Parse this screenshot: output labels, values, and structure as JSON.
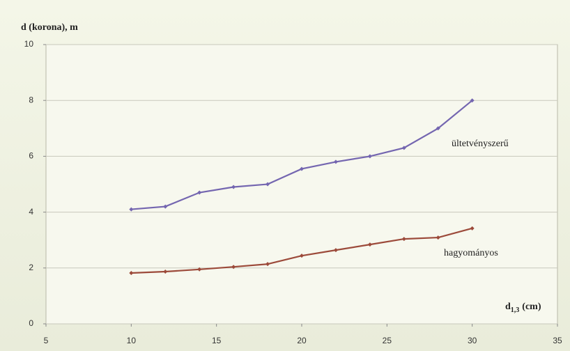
{
  "chart_data": {
    "type": "line",
    "y_label": "d (korona),  m",
    "x_label": {
      "main": "d",
      "sub": "1,3",
      "unit": "(cm)"
    },
    "x": [
      10,
      12,
      14,
      16,
      18,
      20,
      22,
      24,
      26,
      28,
      30
    ],
    "series": [
      {
        "name": "ültetvényszerű",
        "color": "#7466b0",
        "values": [
          4.1,
          4.2,
          4.7,
          4.9,
          5.0,
          5.55,
          5.8,
          6.0,
          6.3,
          7.0,
          8.0
        ]
      },
      {
        "name": "hagyományos",
        "color": "#9c4a3a",
        "values": [
          1.82,
          1.87,
          1.95,
          2.04,
          2.14,
          2.44,
          2.64,
          2.84,
          3.04,
          3.09,
          3.42
        ]
      }
    ],
    "xlim": [
      5,
      35
    ],
    "xticks": [
      5,
      10,
      15,
      20,
      25,
      30,
      35
    ],
    "ylim": [
      0,
      10
    ],
    "yticks": [
      0,
      2,
      4,
      6,
      8,
      10
    ],
    "grid": true
  }
}
